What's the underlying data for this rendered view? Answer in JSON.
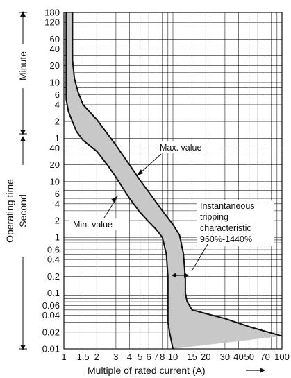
{
  "chart_data": {
    "type": "area",
    "xlabel": "Multiple of rated current (A)",
    "x_scale": "log",
    "xlim": [
      1,
      100
    ],
    "x_ticks": [
      {
        "value": 1,
        "label": "1"
      },
      {
        "value": 1.5,
        "label": "1.5"
      },
      {
        "value": 2,
        "label": "2"
      },
      {
        "value": 3,
        "label": "3"
      },
      {
        "value": 4,
        "label": "4"
      },
      {
        "value": 5,
        "label": "5"
      },
      {
        "value": 6,
        "label": "6"
      },
      {
        "value": 7,
        "label": "7"
      },
      {
        "value": 8,
        "label": "8"
      },
      {
        "value": 10,
        "label": "10"
      },
      {
        "value": 15,
        "label": "15"
      },
      {
        "value": 20,
        "label": "20"
      },
      {
        "value": 30,
        "label": "30"
      },
      {
        "value": 40,
        "label": "40"
      },
      {
        "value": 50,
        "label": "50"
      },
      {
        "value": 70,
        "label": "70"
      },
      {
        "value": 100,
        "label": "100"
      }
    ],
    "y_scale": "log",
    "ylim_seconds": [
      0.01,
      10800
    ],
    "y_ticks": [
      {
        "seconds": 10800,
        "label": "180"
      },
      {
        "seconds": 7200,
        "label": "120"
      },
      {
        "seconds": 3600,
        "label": "60"
      },
      {
        "seconds": 2400,
        "label": "40"
      },
      {
        "seconds": 1200,
        "label": "20"
      },
      {
        "seconds": 600,
        "label": "10"
      },
      {
        "seconds": 360,
        "label": "6"
      },
      {
        "seconds": 240,
        "label": "4"
      },
      {
        "seconds": 120,
        "label": "2"
      },
      {
        "seconds": 60,
        "label": "1"
      },
      {
        "seconds": 40,
        "label": "40"
      },
      {
        "seconds": 20,
        "label": "20"
      },
      {
        "seconds": 10,
        "label": "10"
      },
      {
        "seconds": 6,
        "label": "6"
      },
      {
        "seconds": 4,
        "label": "4"
      },
      {
        "seconds": 2,
        "label": "2"
      },
      {
        "seconds": 1,
        "label": "1"
      },
      {
        "seconds": 0.6,
        "label": "0.6"
      },
      {
        "seconds": 0.4,
        "label": "0.4"
      },
      {
        "seconds": 0.2,
        "label": "0.2"
      },
      {
        "seconds": 0.1,
        "label": "0.1"
      },
      {
        "seconds": 0.06,
        "label": "0.06"
      },
      {
        "seconds": 0.04,
        "label": "0.04"
      },
      {
        "seconds": 0.02,
        "label": "0.02"
      },
      {
        "seconds": 0.01,
        "label": "0.01"
      }
    ],
    "y_groups": [
      {
        "label": "Minute",
        "range_seconds": [
          60,
          10800
        ]
      },
      {
        "label": "Second",
        "range_seconds": [
          0.01,
          60
        ]
      }
    ],
    "y_title": "Operating time",
    "grid": true,
    "series": [
      {
        "name": "Max. value",
        "points": [
          [
            1.2,
            10800
          ],
          [
            1.2,
            1500
          ],
          [
            1.25,
            700
          ],
          [
            1.35,
            400
          ],
          [
            1.5,
            240
          ],
          [
            2,
            130
          ],
          [
            3,
            45
          ],
          [
            4,
            20
          ],
          [
            5,
            10.5
          ],
          [
            6,
            6.5
          ],
          [
            7,
            4.3
          ],
          [
            8,
            3
          ],
          [
            10,
            1.7
          ],
          [
            11.5,
            1.1
          ],
          [
            12.5,
            0.5
          ],
          [
            13,
            0.18
          ],
          [
            13,
            0.1
          ],
          [
            13.5,
            0.07
          ],
          [
            15,
            0.05
          ],
          [
            20,
            0.043
          ],
          [
            30,
            0.035
          ],
          [
            50,
            0.025
          ],
          [
            100,
            0.017
          ]
        ]
      },
      {
        "name": "Min. value",
        "points": [
          [
            1.05,
            10800
          ],
          [
            1.05,
            300
          ],
          [
            1.1,
            180
          ],
          [
            1.3,
            80
          ],
          [
            1.5,
            55
          ],
          [
            2,
            35
          ],
          [
            2.5,
            20
          ],
          [
            3,
            12
          ],
          [
            4,
            5
          ],
          [
            5,
            2.8
          ],
          [
            6,
            1.9
          ],
          [
            7,
            1.4
          ],
          [
            8,
            1
          ],
          [
            8.7,
            0.5
          ],
          [
            9,
            0.2
          ],
          [
            9,
            0.03
          ],
          [
            9.3,
            0.02
          ],
          [
            10,
            0.01
          ]
        ]
      }
    ],
    "annotations": {
      "max_label": "Max. value",
      "min_label": "Min. value",
      "instant_lines": [
        "Instantaneous",
        "tripping",
        "characteristic",
        "960%-1440%"
      ]
    },
    "colors": {
      "band": "#c8c8c8",
      "line": "#111111",
      "grid": "#222222",
      "background": "#ffffff"
    }
  }
}
